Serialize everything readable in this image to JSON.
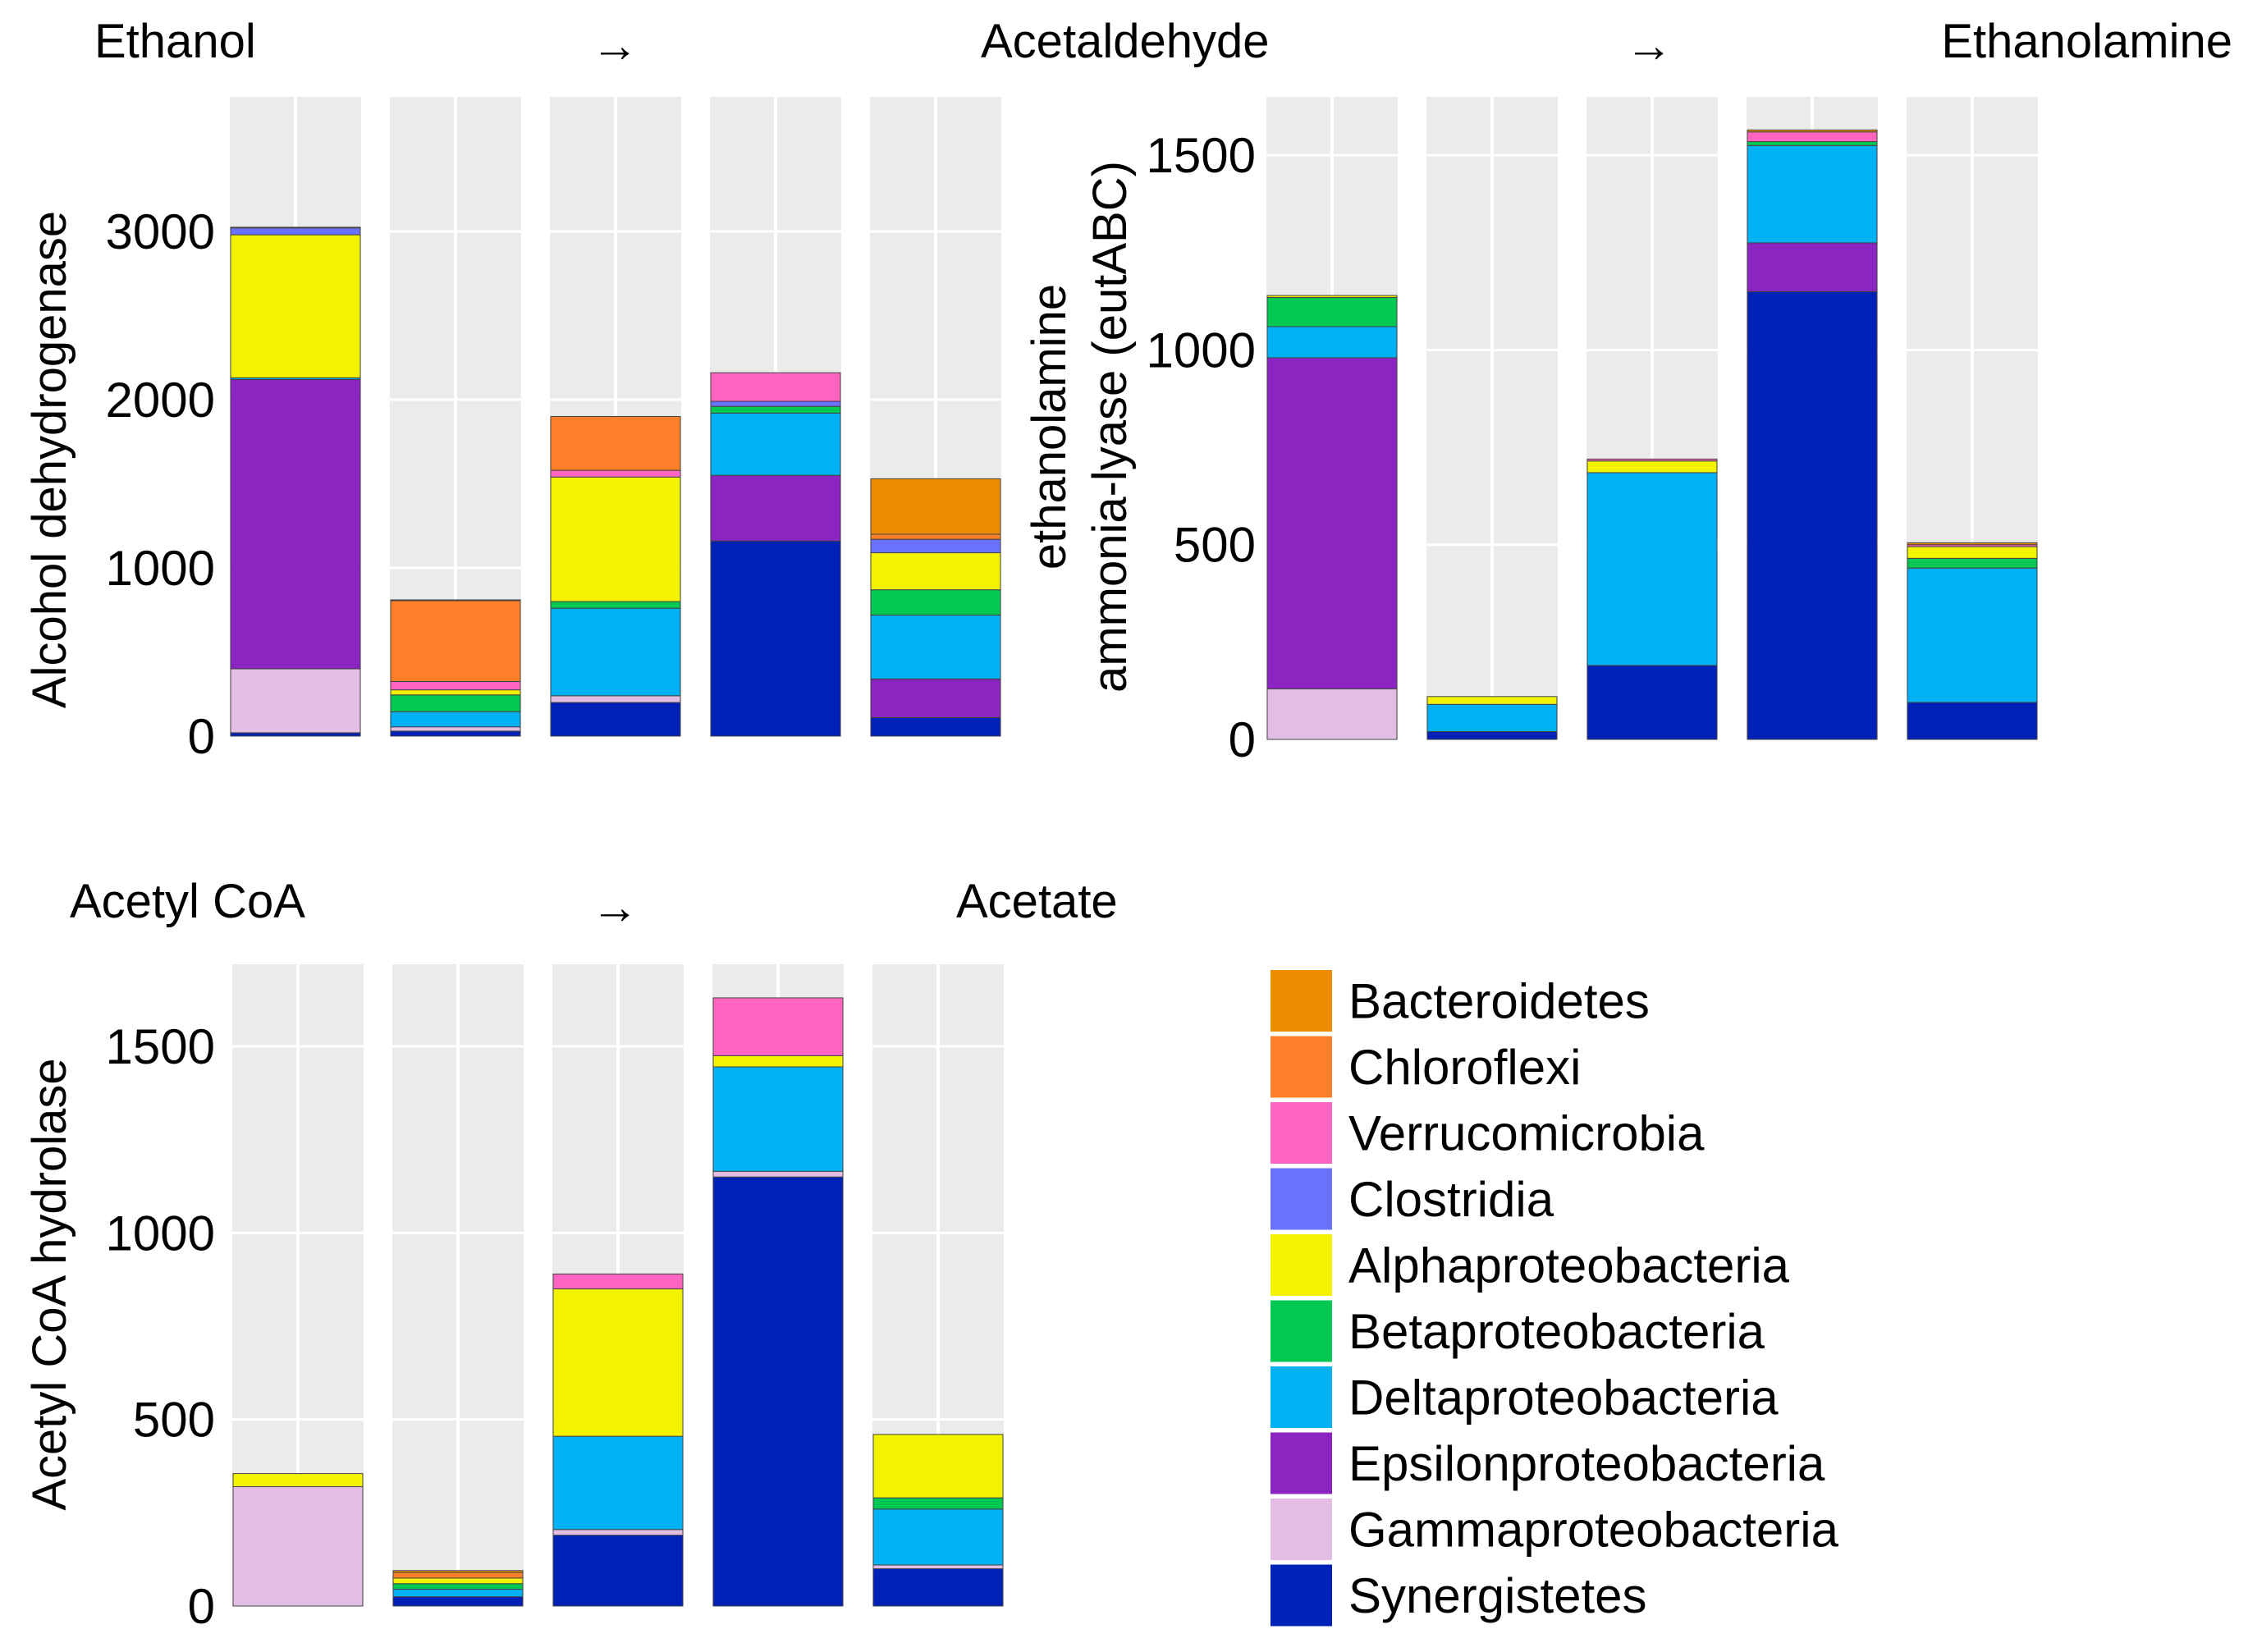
{
  "colors": {
    "Bacteroidetes": "#ee8c00",
    "Chloroflexi": "#fd7f2a",
    "Verrucomicrobia": "#ff65c0",
    "Clostridia": "#6b72ff",
    "Alphaproteobacteria": "#f3f300",
    "Betaproteobacteria": "#00c853",
    "Deltaproteobacteria": "#00b2f4",
    "Epsilonproteobacteria": "#8b24c0",
    "Gammaproteobacteria": "#e3bde3",
    "Synergistetes": "#0021b8"
  },
  "legend": {
    "items": [
      "Bacteroidetes",
      "Chloroflexi",
      "Verrucomicrobia",
      "Clostridia",
      "Alphaproteobacteria",
      "Betaproteobacteria",
      "Deltaproteobacteria",
      "Epsilonproteobacteria",
      "Gammaproteobacteria",
      "Synergistetes"
    ]
  },
  "chart_data": [
    {
      "type": "bar",
      "stacked": true,
      "pathway_from": "Ethanol",
      "arrow": "→",
      "pathway_to": "Acetaldehyde",
      "ylabel": "Alcohol dehydrogenase",
      "ylim": [
        0,
        3800
      ],
      "yticks": [
        0,
        1000,
        2000,
        3000
      ],
      "bars": [
        {
          "Synergistetes": 20,
          "Gammaproteobacteria": 380,
          "Epsilonproteobacteria": 1720,
          "Deltaproteobacteria": 10,
          "Clostridia": 40,
          "Alphaproteobacteria": 850,
          "Chloroflexi": 5
        },
        {
          "Synergistetes": 30,
          "Verrucomicrobia": 50,
          "Gammaproteobacteria": 25,
          "Deltaproteobacteria": 90,
          "Betaproteobacteria": 100,
          "Chloroflexi": 480,
          "Alphaproteobacteria": 30,
          "Bacteroidetes": 5
        },
        {
          "Synergistetes": 200,
          "Gammaproteobacteria": 40,
          "Deltaproteobacteria": 520,
          "Betaproteobacteria": 40,
          "Chloroflexi": 320,
          "Alphaproteobacteria": 740,
          "Verrucomicrobia": 40
        },
        {
          "Synergistetes": 1160,
          "Clostridia": 30,
          "Epsilonproteobacteria": 390,
          "Deltaproteobacteria": 370,
          "Betaproteobacteria": 40,
          "Verrucomicrobia": 170
        },
        {
          "Synergistetes": 110,
          "Epsilonproteobacteria": 230,
          "Deltaproteobacteria": 380,
          "Clostridia": 80,
          "Betaproteobacteria": 150,
          "Chloroflexi": 30,
          "Alphaproteobacteria": 220,
          "Bacteroidetes": 330
        }
      ]
    },
    {
      "type": "bar",
      "stacked": true,
      "pathway_from": "",
      "arrow": "→",
      "pathway_to": "Ethanolamine",
      "ylabel": "ethanolamine ammonia-lyase (eutABC)",
      "ylim": [
        0,
        1650
      ],
      "yticks": [
        0,
        500,
        1000,
        1500
      ],
      "bars": [
        {
          "Gammaproteobacteria": 130,
          "Epsilonproteobacteria": 850,
          "Deltaproteobacteria": 80,
          "Betaproteobacteria": 75,
          "Alphaproteobacteria": 5
        },
        {
          "Synergistetes": 20,
          "Deltaproteobacteria": 70,
          "Alphaproteobacteria": 20
        },
        {
          "Synergistetes": 190,
          "Verrucomicrobia": 5,
          "Deltaproteobacteria": 495,
          "Alphaproteobacteria": 30
        },
        {
          "Synergistetes": 1150,
          "Verrucomicrobia": 25,
          "Epsilonproteobacteria": 125,
          "Deltaproteobacteria": 250,
          "Betaproteobacteria": 10,
          "Bacteroidetes": 5
        },
        {
          "Synergistetes": 95,
          "Verrucomicrobia": 5,
          "Deltaproteobacteria": 345,
          "Betaproteobacteria": 25,
          "Alphaproteobacteria": 30,
          "Bacteroidetes": 5
        }
      ]
    },
    {
      "type": "bar",
      "stacked": true,
      "pathway_from": "Acetyl CoA",
      "arrow": "→",
      "pathway_to": "Acetate",
      "ylabel": "Acetyl CoA hydrolase",
      "ylim": [
        0,
        1720
      ],
      "yticks": [
        0,
        500,
        1000,
        1500
      ],
      "bars": [
        {
          "Gammaproteobacteria": 320,
          "Alphaproteobacteria": 35
        },
        {
          "Synergistetes": 25,
          "Deltaproteobacteria": 20,
          "Betaproteobacteria": 15,
          "Alphaproteobacteria": 15,
          "Chloroflexi": 15,
          "Bacteroidetes": 5
        },
        {
          "Synergistetes": 190,
          "Gammaproteobacteria": 15,
          "Deltaproteobacteria": 250,
          "Alphaproteobacteria": 395,
          "Verrucomicrobia": 40
        },
        {
          "Synergistetes": 1150,
          "Gammaproteobacteria": 15,
          "Deltaproteobacteria": 280,
          "Alphaproteobacteria": 30,
          "Verrucomicrobia": 155
        },
        {
          "Synergistetes": 100,
          "Gammaproteobacteria": 10,
          "Deltaproteobacteria": 150,
          "Betaproteobacteria": 30,
          "Alphaproteobacteria": 170
        }
      ]
    }
  ]
}
